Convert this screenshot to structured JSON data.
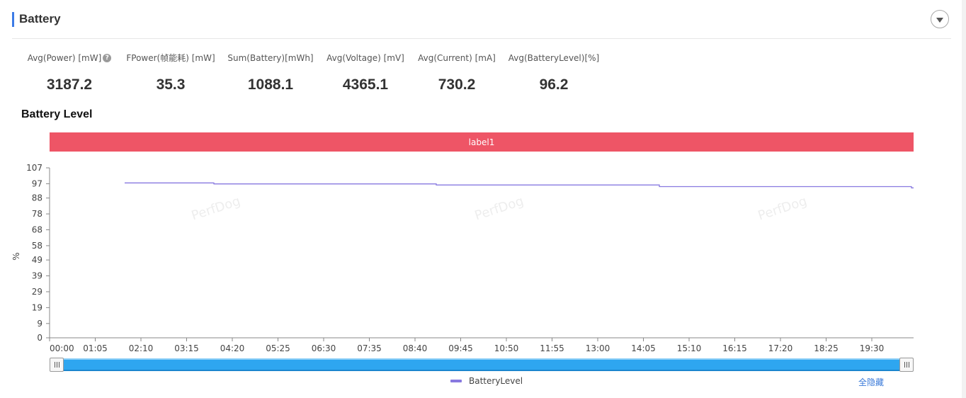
{
  "section": {
    "title": "Battery"
  },
  "metrics": [
    {
      "label": "Avg(Power) [mW]",
      "value": "3187.2",
      "help": true
    },
    {
      "label": "FPower(帧能耗) [mW]",
      "value": "35.3"
    },
    {
      "label": "Sum(Battery)[mWh]",
      "value": "1088.1"
    },
    {
      "label": "Avg(Voltage) [mV]",
      "value": "4365.1"
    },
    {
      "label": "Avg(Current) [mA]",
      "value": "730.2"
    },
    {
      "label": "Avg(BatteryLevel)[%]",
      "value": "96.2"
    }
  ],
  "chart": {
    "title": "Battery Level",
    "label_bar": "label1",
    "watermark": "PerfDog",
    "hide_all_label": "全隐藏"
  },
  "colors": {
    "accent": "#3c7be6",
    "label_bar": "#ee5566",
    "series": "#8879e0",
    "slider": "#2ea6f0"
  },
  "chart_data": {
    "type": "line",
    "ylabel": "%",
    "ylim": [
      0,
      107
    ],
    "y_ticks": [
      0,
      9,
      19,
      29,
      39,
      49,
      58,
      68,
      78,
      88,
      97,
      107
    ],
    "x_ticks": [
      "00:00",
      "01:05",
      "02:10",
      "03:15",
      "04:20",
      "05:25",
      "06:30",
      "07:35",
      "08:40",
      "09:45",
      "10:50",
      "11:55",
      "13:00",
      "14:05",
      "15:10",
      "16:15",
      "17:20",
      "18:25",
      "19:30"
    ],
    "x_range_seconds": [
      0,
      1220
    ],
    "series": [
      {
        "name": "BatteryLevel",
        "points": [
          [
            106,
            97.5
          ],
          [
            232,
            97.5
          ],
          [
            232,
            96.9
          ],
          [
            546,
            96.9
          ],
          [
            546,
            96.2
          ],
          [
            861,
            96.2
          ],
          [
            861,
            95.2
          ],
          [
            1217,
            95.2
          ],
          [
            1217,
            94.4
          ],
          [
            1220,
            94.4
          ]
        ]
      }
    ],
    "legend": "bottom",
    "grid": false
  }
}
